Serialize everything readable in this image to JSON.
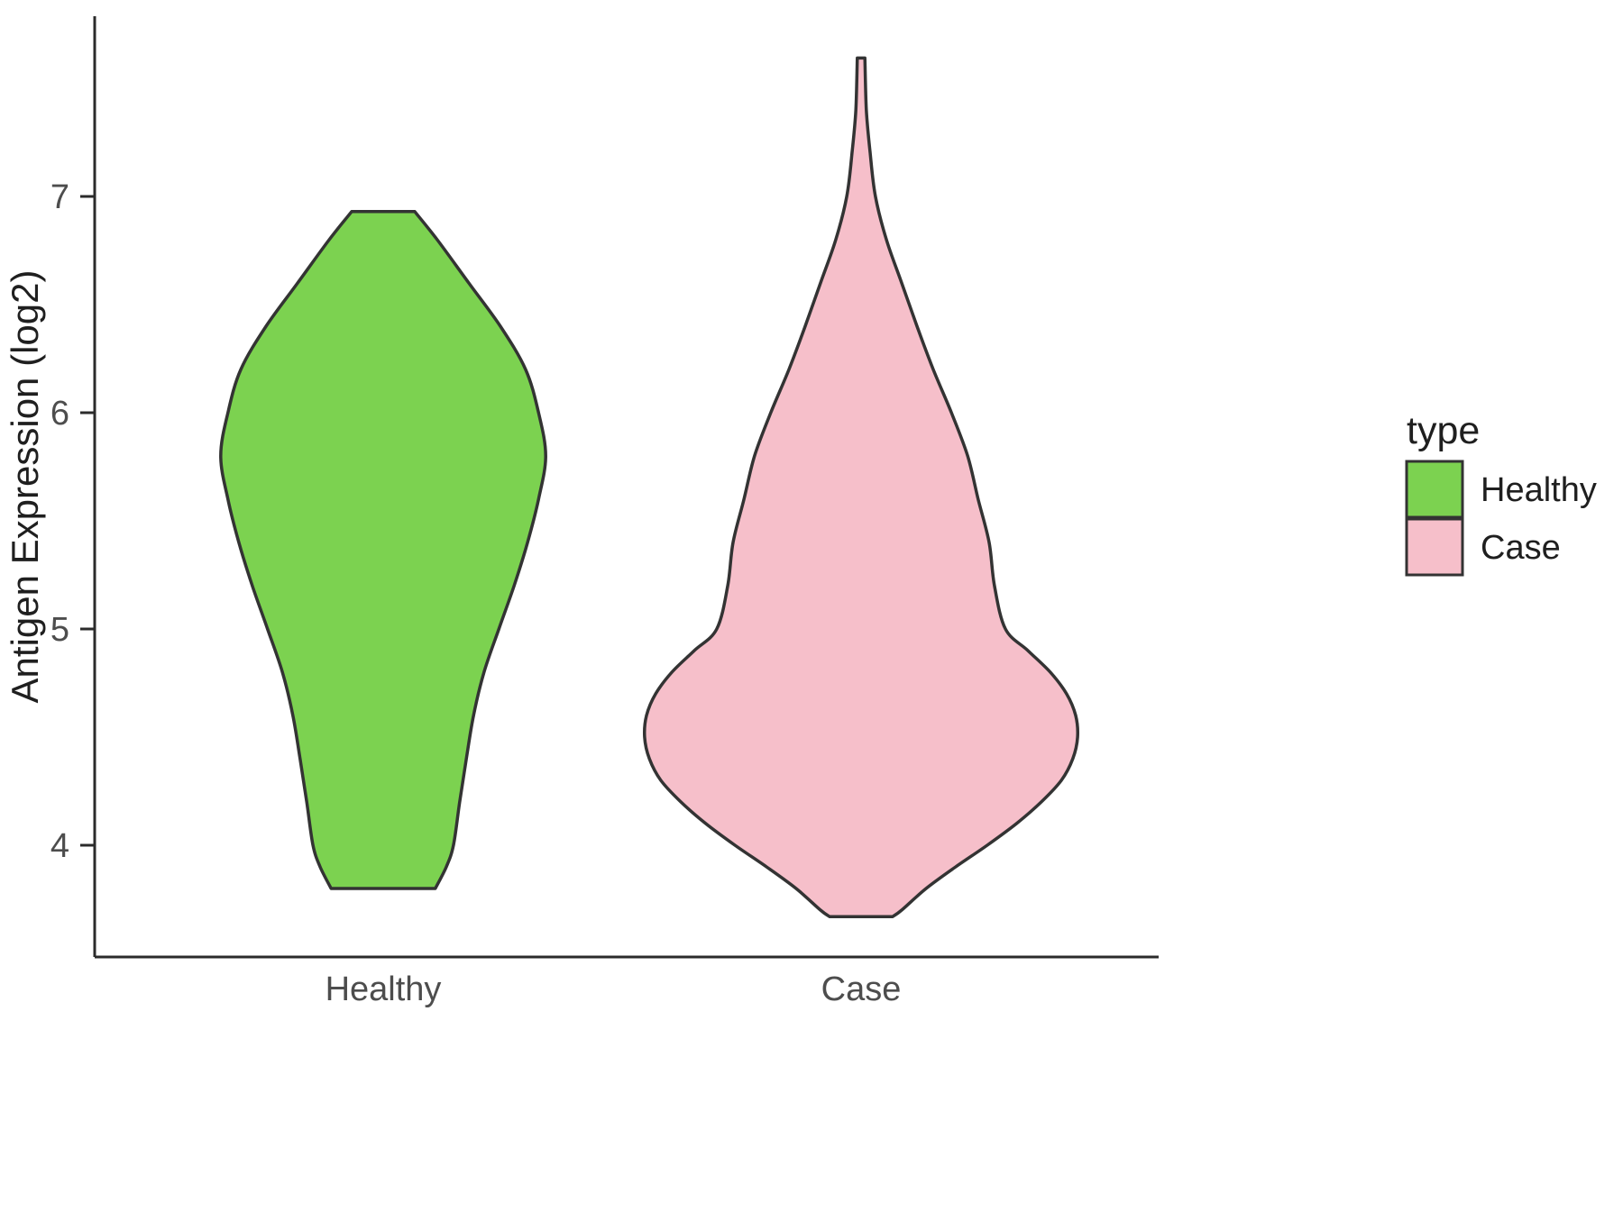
{
  "chart_data": {
    "type": "violin",
    "title": "",
    "xlabel": "",
    "ylabel": "Antigen Expression (log2)",
    "categories": [
      "Healthy",
      "Case"
    ],
    "y_ticks": [
      4,
      5,
      6,
      7
    ],
    "y_axis_range": [
      3.48,
      7.83
    ],
    "grid": "off",
    "outline_color": "#333333",
    "axis_color": "#2b2b2b",
    "legend": {
      "title": "type",
      "position": "right",
      "entries": [
        {
          "label": "Healthy",
          "color": "#7CD250"
        },
        {
          "label": "Case",
          "color": "#F6BFCA"
        }
      ]
    },
    "series": [
      {
        "name": "Healthy",
        "color": "#7CD250",
        "profile": [
          {
            "y": 6.93,
            "w": 0.066
          },
          {
            "y": 6.8,
            "w": 0.113
          },
          {
            "y": 6.6,
            "w": 0.179
          },
          {
            "y": 6.4,
            "w": 0.245
          },
          {
            "y": 6.2,
            "w": 0.298
          },
          {
            "y": 6.0,
            "w": 0.325
          },
          {
            "y": 5.8,
            "w": 0.34
          },
          {
            "y": 5.6,
            "w": 0.325
          },
          {
            "y": 5.4,
            "w": 0.302
          },
          {
            "y": 5.2,
            "w": 0.274
          },
          {
            "y": 5.0,
            "w": 0.242
          },
          {
            "y": 4.8,
            "w": 0.211
          },
          {
            "y": 4.6,
            "w": 0.189
          },
          {
            "y": 4.4,
            "w": 0.174
          },
          {
            "y": 4.2,
            "w": 0.16
          },
          {
            "y": 4.0,
            "w": 0.147
          },
          {
            "y": 3.9,
            "w": 0.132
          },
          {
            "y": 3.8,
            "w": 0.109
          }
        ]
      },
      {
        "name": "Case",
        "color": "#F6BFCA",
        "profile": [
          {
            "y": 7.64,
            "w": 0.008
          },
          {
            "y": 7.4,
            "w": 0.011
          },
          {
            "y": 7.2,
            "w": 0.019
          },
          {
            "y": 7.0,
            "w": 0.03
          },
          {
            "y": 6.8,
            "w": 0.053
          },
          {
            "y": 6.6,
            "w": 0.085
          },
          {
            "y": 6.4,
            "w": 0.117
          },
          {
            "y": 6.2,
            "w": 0.151
          },
          {
            "y": 6.0,
            "w": 0.189
          },
          {
            "y": 5.8,
            "w": 0.223
          },
          {
            "y": 5.6,
            "w": 0.245
          },
          {
            "y": 5.4,
            "w": 0.268
          },
          {
            "y": 5.2,
            "w": 0.279
          },
          {
            "y": 5.0,
            "w": 0.302
          },
          {
            "y": 4.9,
            "w": 0.349
          },
          {
            "y": 4.8,
            "w": 0.396
          },
          {
            "y": 4.7,
            "w": 0.43
          },
          {
            "y": 4.6,
            "w": 0.449
          },
          {
            "y": 4.5,
            "w": 0.453
          },
          {
            "y": 4.4,
            "w": 0.443
          },
          {
            "y": 4.3,
            "w": 0.419
          },
          {
            "y": 4.2,
            "w": 0.377
          },
          {
            "y": 4.1,
            "w": 0.325
          },
          {
            "y": 4.0,
            "w": 0.264
          },
          {
            "y": 3.9,
            "w": 0.198
          },
          {
            "y": 3.8,
            "w": 0.136
          },
          {
            "y": 3.7,
            "w": 0.085
          },
          {
            "y": 3.67,
            "w": 0.066
          }
        ]
      }
    ]
  }
}
